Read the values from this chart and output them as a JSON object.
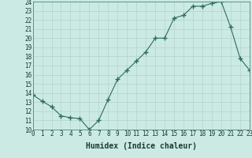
{
  "x": [
    0,
    1,
    2,
    3,
    4,
    5,
    6,
    7,
    8,
    9,
    10,
    11,
    12,
    13,
    14,
    15,
    16,
    17,
    18,
    19,
    20,
    21,
    22,
    23
  ],
  "y": [
    13.8,
    13.1,
    12.5,
    11.5,
    11.3,
    11.2,
    10.0,
    11.0,
    13.3,
    15.5,
    16.5,
    17.5,
    18.5,
    20.0,
    20.0,
    22.2,
    22.5,
    23.5,
    23.5,
    23.8,
    24.0,
    21.2,
    17.8,
    16.5
  ],
  "line_color": "#2e6b5e",
  "marker": "+",
  "marker_size": 4,
  "bg_color": "#cceae4",
  "grid_color": "#b0d4cc",
  "xlabel": "Humidex (Indice chaleur)",
  "xlim": [
    0,
    23
  ],
  "ylim": [
    10,
    24
  ],
  "xticks": [
    0,
    1,
    2,
    3,
    4,
    5,
    6,
    7,
    8,
    9,
    10,
    11,
    12,
    13,
    14,
    15,
    16,
    17,
    18,
    19,
    20,
    21,
    22,
    23
  ],
  "yticks": [
    10,
    11,
    12,
    13,
    14,
    15,
    16,
    17,
    18,
    19,
    20,
    21,
    22,
    23,
    24
  ],
  "tick_label_size": 5.5,
  "xlabel_size": 7
}
